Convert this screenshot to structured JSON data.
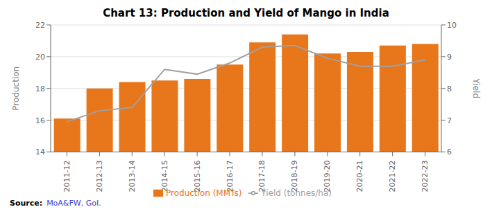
{
  "chart_data": {
    "type": "bar",
    "title": "Chart 13: Production and Yield of Mango in India",
    "categories": [
      "2011-12",
      "2012-13",
      "2013-14",
      "2014-15",
      "2015-16",
      "2016-17",
      "2017-18",
      "2018-19",
      "2019-20",
      "2020-21",
      "2021-22",
      "2022-23"
    ],
    "series": [
      {
        "name": "Production (MMTs)",
        "type": "bar",
        "color": "#E8761A",
        "values": [
          16.1,
          18.0,
          18.4,
          18.5,
          18.6,
          19.5,
          20.9,
          21.4,
          20.2,
          20.3,
          20.7,
          20.8
        ]
      },
      {
        "name": "Yield (tonnes/ha)",
        "type": "line",
        "axis": "y2",
        "color": "#A0A0A0",
        "values": [
          6.95,
          7.3,
          7.4,
          8.6,
          8.45,
          8.8,
          9.3,
          9.35,
          8.95,
          8.7,
          8.7,
          8.9
        ]
      }
    ],
    "ylabel": "Production",
    "y2label": "Yield",
    "ylim": [
      14,
      22
    ],
    "yticks": [
      14,
      16,
      18,
      20,
      22
    ],
    "y2lim": [
      6,
      10
    ],
    "y2ticks": [
      6,
      7,
      8,
      9,
      10
    ],
    "grid": true,
    "legend": "bottom",
    "annotations": [
      {
        "text": "Source:"
      },
      {
        "text": "MoA&FW, GoI.",
        "color": "#4040CC"
      }
    ]
  }
}
